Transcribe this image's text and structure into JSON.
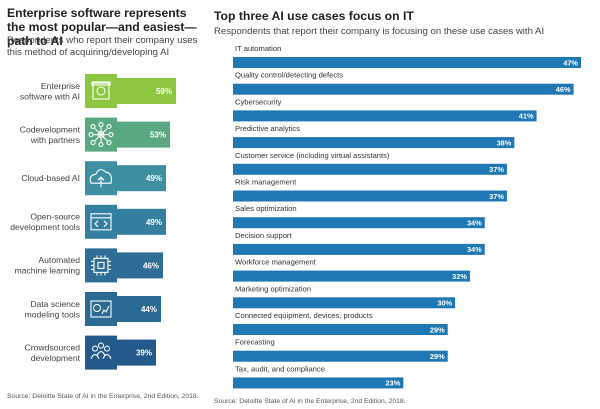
{
  "left": {
    "title": "Enterprise software represents the most popular—and easiest—path to AI",
    "subtitle": "Respondents who report their company uses this method of acquiring/developing AI",
    "source": "Source: Deloitte State of AI in the Enterprise, 2nd Edition, 2018."
  },
  "right": {
    "title": "Top three AI use cases focus on IT",
    "subtitle": "Respondents that report their company is focusing on these use cases with AI",
    "source": "Source: Deloitte State of AI in the Enterprise, 2nd Edition, 2018."
  },
  "chart_data": [
    {
      "type": "bar",
      "orientation": "horizontal",
      "categories": [
        "Enterprise software with AI",
        "Codevelopment with partners",
        "Cloud-based AI",
        "Open-source development tools",
        "Automated machine learning",
        "Data science modeling tools",
        "Crowdsourced development"
      ],
      "category_lines": [
        [
          "Enterprise",
          "software with AI"
        ],
        [
          "Codevelopment",
          "with partners"
        ],
        [
          "Cloud-based AI"
        ],
        [
          "Open-source",
          "development tools"
        ],
        [
          "Automated",
          "machine learning"
        ],
        [
          "Data science",
          "modeling tools"
        ],
        [
          "Crowdsourced",
          "development"
        ]
      ],
      "values": [
        59,
        53,
        49,
        49,
        46,
        44,
        39
      ],
      "value_labels": [
        "59%",
        "53%",
        "49%",
        "49%",
        "46%",
        "44%",
        "39%"
      ],
      "icons": [
        "software-chip-icon",
        "partners-network-icon",
        "cloud-upload-icon",
        "code-window-icon",
        "processor-chip-icon",
        "data-science-chart-icon",
        "crowd-people-icon"
      ],
      "colors": [
        "#8dc63f",
        "#5aa882",
        "#3f8fa3",
        "#357fa0",
        "#2e6e96",
        "#2a6a93",
        "#235a8b"
      ]
    },
    {
      "type": "bar",
      "orientation": "horizontal",
      "categories": [
        "IT automation",
        "Quality control/detecting defects",
        "Cybersecurity",
        "Predictive analytics",
        "Customer service (including virtual assistants)",
        "Risk management",
        "Sales optimization",
        "Decision support",
        "Workforce management",
        "Marketing optimization",
        "Connected equipment, devices, products",
        "Forecasting",
        "Tax, audit, and compliance"
      ],
      "values": [
        47,
        46,
        41,
        38,
        37,
        37,
        34,
        34,
        32,
        30,
        29,
        29,
        23
      ],
      "value_labels": [
        "47%",
        "46%",
        "41%",
        "38%",
        "37%",
        "37%",
        "34%",
        "34%",
        "32%",
        "30%",
        "29%",
        "29%",
        "23%"
      ],
      "bar_color": "#1f78b4"
    }
  ]
}
